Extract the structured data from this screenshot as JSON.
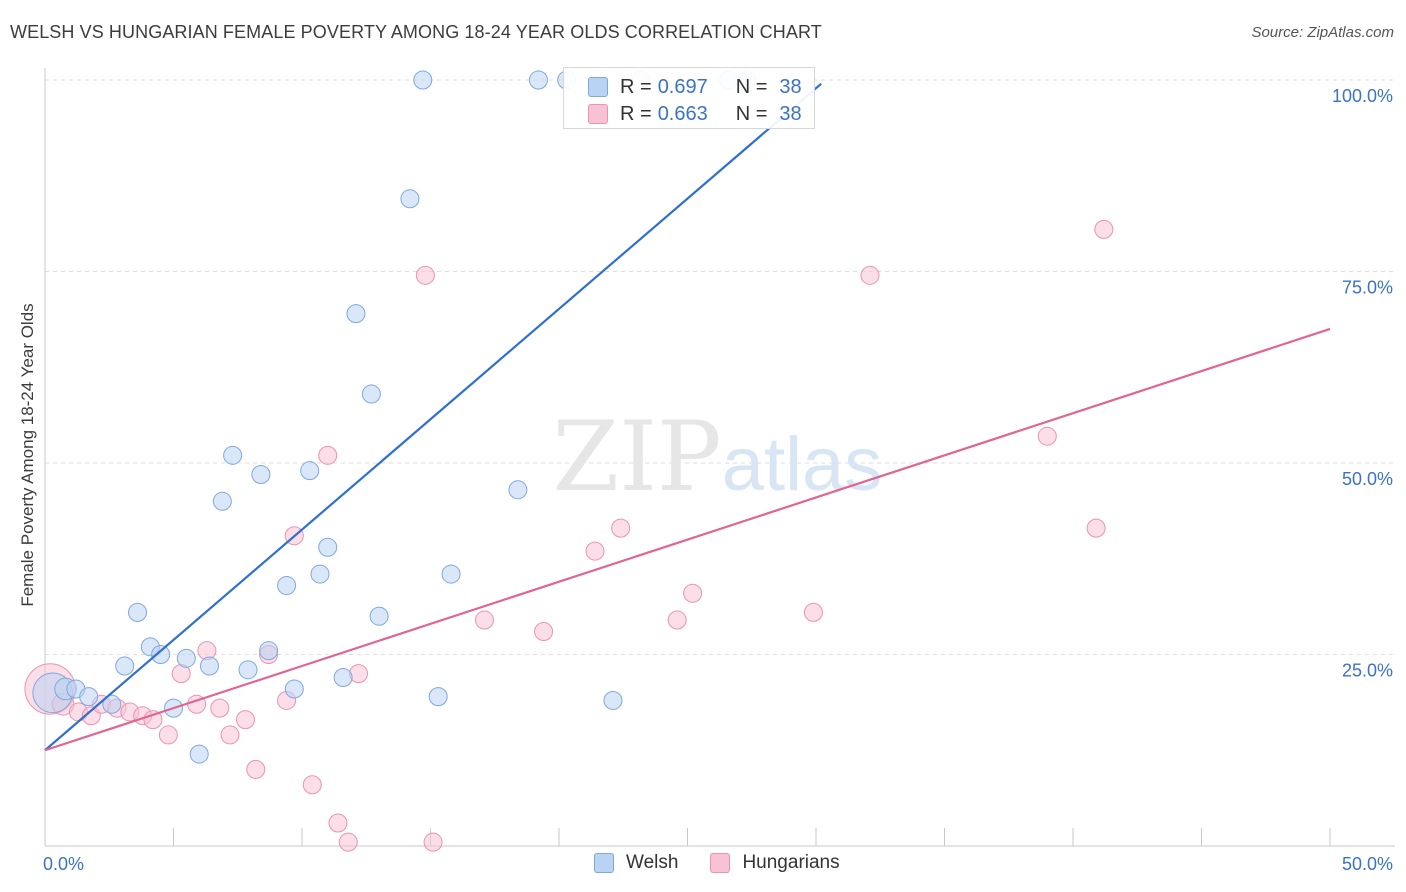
{
  "title": "WELSH VS HUNGARIAN FEMALE POVERTY AMONG 18-24 YEAR OLDS CORRELATION CHART",
  "source": "Source: ZipAtlas.com",
  "watermark": {
    "zip": "ZIP",
    "atlas": "atlas"
  },
  "colors": {
    "welsh_fill": "#b9d3f3",
    "welsh_stroke": "#7fa8df",
    "welsh_line": "#2f6fcf",
    "hungarian_fill": "#f7c3d4",
    "hungarian_stroke": "#eb93b0",
    "hungarian_line": "#e06592",
    "tick_label": "#3a73c4",
    "grid": "#dedede"
  },
  "legend": {
    "welsh": {
      "r_label": "R =",
      "r_value": "0.697",
      "n_label": "N =",
      "n_value": "38"
    },
    "hungarian": {
      "r_label": "R =",
      "r_value": "0.663",
      "n_label": "N =",
      "n_value": "38"
    }
  },
  "bottom_legend": {
    "welsh": "Welsh",
    "hungarian": "Hungarians"
  },
  "chart_data": {
    "type": "scatter",
    "title": "WELSH VS HUNGARIAN FEMALE POVERTY AMONG 18-24 YEAR OLDS CORRELATION CHART",
    "xlabel": "",
    "ylabel": "Female Poverty Among 18-24 Year Olds",
    "xlim": [
      0,
      50
    ],
    "ylim": [
      0,
      100
    ],
    "x_tick_labels": [
      "0.0%",
      "50.0%"
    ],
    "y_ticks": [
      25,
      50,
      75,
      100
    ],
    "y_tick_labels": [
      "25.0%",
      "50.0%",
      "75.0%",
      "100.0%"
    ],
    "grid": "horizontal dashed",
    "legend_position": "top-center",
    "series": [
      {
        "name": "Welsh",
        "r": 0.697,
        "n": 38,
        "trend": {
          "x": [
            0,
            30.2
          ],
          "y": [
            12.5,
            99.5
          ]
        },
        "points": [
          [
            0.3,
            20.0,
            22
          ],
          [
            0.8,
            20.5,
            12
          ],
          [
            1.2,
            20.5,
            10
          ],
          [
            1.7,
            19.5,
            10
          ],
          [
            2.6,
            18.5,
            10
          ],
          [
            3.1,
            23.5,
            10
          ],
          [
            3.6,
            30.5,
            10
          ],
          [
            4.1,
            26.0,
            10
          ],
          [
            4.5,
            25.0,
            10
          ],
          [
            5.0,
            18.0,
            10
          ],
          [
            5.5,
            24.5,
            10
          ],
          [
            6.0,
            12.0,
            10
          ],
          [
            6.4,
            23.5,
            10
          ],
          [
            6.9,
            45.0,
            10
          ],
          [
            7.3,
            51.0,
            10
          ],
          [
            7.9,
            23.0,
            10
          ],
          [
            8.4,
            48.5,
            10
          ],
          [
            8.7,
            25.5,
            10
          ],
          [
            9.4,
            34.0,
            10
          ],
          [
            9.7,
            20.5,
            10
          ],
          [
            10.3,
            49.0,
            10
          ],
          [
            10.7,
            35.5,
            10
          ],
          [
            11.0,
            39.0,
            10
          ],
          [
            11.6,
            22.0,
            10
          ],
          [
            12.1,
            69.5,
            10
          ],
          [
            12.7,
            59.0,
            10
          ],
          [
            13.0,
            30.0,
            10
          ],
          [
            14.2,
            84.5,
            10
          ],
          [
            14.7,
            100.0,
            10
          ],
          [
            15.3,
            19.5,
            10
          ],
          [
            15.8,
            35.5,
            10
          ],
          [
            18.4,
            46.5,
            10
          ],
          [
            19.2,
            100.0,
            10
          ],
          [
            20.3,
            100.0,
            10
          ],
          [
            22.1,
            19.0,
            10
          ],
          [
            23.2,
            100.0,
            10
          ],
          [
            26.6,
            100.0,
            10
          ],
          [
            27.3,
            100.0,
            10
          ]
        ]
      },
      {
        "name": "Hungarians",
        "r": 0.663,
        "n": 38,
        "trend": {
          "x": [
            0,
            50
          ],
          "y": [
            12.5,
            67.5
          ]
        },
        "points": [
          [
            0.2,
            20.5,
            28
          ],
          [
            0.7,
            18.5,
            12
          ],
          [
            1.3,
            17.5,
            10
          ],
          [
            1.8,
            17.0,
            10
          ],
          [
            2.2,
            18.5,
            10
          ],
          [
            2.8,
            18.0,
            10
          ],
          [
            3.3,
            17.5,
            10
          ],
          [
            3.8,
            17.0,
            10
          ],
          [
            4.2,
            16.5,
            10
          ],
          [
            4.8,
            14.5,
            10
          ],
          [
            5.3,
            22.5,
            10
          ],
          [
            5.9,
            18.5,
            10
          ],
          [
            6.3,
            25.5,
            10
          ],
          [
            6.8,
            18.0,
            10
          ],
          [
            7.2,
            14.5,
            10
          ],
          [
            7.8,
            16.5,
            10
          ],
          [
            8.2,
            10.0,
            10
          ],
          [
            8.7,
            25.0,
            10
          ],
          [
            9.4,
            19.0,
            10
          ],
          [
            9.7,
            40.5,
            10
          ],
          [
            10.4,
            8.0,
            10
          ],
          [
            11.0,
            51.0,
            10
          ],
          [
            11.4,
            3.0,
            10
          ],
          [
            11.8,
            0.5,
            10
          ],
          [
            12.2,
            22.5,
            10
          ],
          [
            14.8,
            74.5,
            10
          ],
          [
            15.1,
            0.5,
            10
          ],
          [
            17.1,
            29.5,
            10
          ],
          [
            19.4,
            28.0,
            10
          ],
          [
            21.4,
            38.5,
            10
          ],
          [
            22.4,
            41.5,
            10
          ],
          [
            24.6,
            29.5,
            10
          ],
          [
            25.2,
            33.0,
            10
          ],
          [
            29.9,
            30.5,
            10
          ],
          [
            32.1,
            74.5,
            10
          ],
          [
            39.0,
            53.5,
            10
          ],
          [
            40.9,
            41.5,
            10
          ],
          [
            41.2,
            80.5,
            10
          ]
        ]
      }
    ]
  }
}
